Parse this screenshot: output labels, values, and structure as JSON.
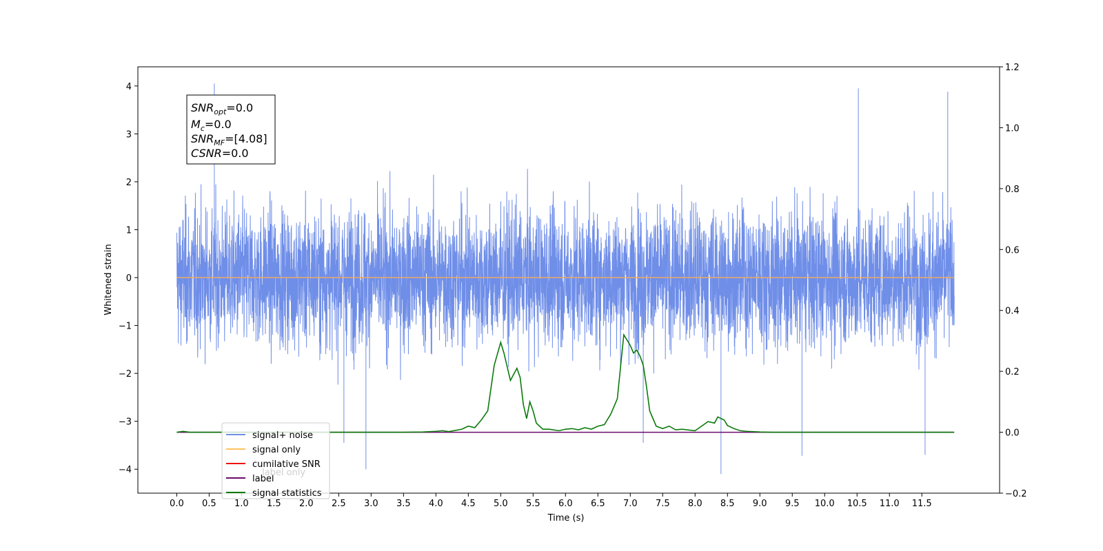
{
  "chart_data": {
    "type": "line",
    "xlabel": "Time (s)",
    "ylabel": "Whitened strain",
    "xlim": [
      -0.6,
      12.7
    ],
    "ylim_left": [
      -4.5,
      4.4
    ],
    "ylim_right": [
      -0.2,
      1.2
    ],
    "x_tick_labels": [
      "0.0",
      "0.5",
      "1.0",
      "1.5",
      "2.0",
      "2.5",
      "3.0",
      "3.5",
      "4.0",
      "4.5",
      "5.0",
      "5.5",
      "6.0",
      "6.5",
      "7.0",
      "7.5",
      "8.0",
      "8.5",
      "9.0",
      "9.5",
      "10.0",
      "10.5",
      "11.0",
      "11.5"
    ],
    "y_left_tick_labels": [
      "4",
      "3",
      "2",
      "1",
      "0",
      "−1",
      "−2",
      "−3",
      "−4"
    ],
    "y_right_tick_labels": [
      "1.2",
      "1.0",
      "0.8",
      "0.6",
      "0.4",
      "0.2",
      "0.0",
      "−0.2"
    ],
    "info_box": {
      "snr_opt_label": "SNR",
      "snr_opt_sub": "opt",
      "snr_opt_value": "=0.0",
      "mc_label": "M",
      "mc_sub": "c",
      "mc_value": "=0.0",
      "snr_mf_label": "SNR",
      "snr_mf_sub": "MF",
      "snr_mf_value": "=[4.08]",
      "csnr_label": "CSNR",
      "csnr_value": "=0.0"
    },
    "legend": {
      "placement": "lower-left",
      "entries": [
        {
          "label": "signal+ noise",
          "color": "#6f8ee8"
        },
        {
          "label": "signal only",
          "color": "#ffc25e"
        },
        {
          "label": "cumilative SNR",
          "color": "#ee1111"
        },
        {
          "label": "label",
          "color": "#6a0a6a"
        },
        {
          "label": "signal statistics",
          "color": "#0a7a0a"
        }
      ],
      "hidden_label": "label only"
    },
    "series": [
      {
        "name": "signal+ noise",
        "axis": "left",
        "color": "#6f8ee8",
        "description_shape": "dense noise, typical amplitude ~2.0, spikes reaching about +4.05 and -4.1",
        "x_range": [
          0.0,
          12.0
        ],
        "peaks": [
          {
            "x": 0.58,
            "y": 4.05
          },
          {
            "x": 10.52,
            "y": 3.95
          },
          {
            "x": 11.9,
            "y": 3.88
          },
          {
            "x": 8.4,
            "y": -4.1
          },
          {
            "x": 2.92,
            "y": -4.0
          },
          {
            "x": 11.55,
            "y": -3.7
          },
          {
            "x": 9.65,
            "y": -3.72
          },
          {
            "x": 2.58,
            "y": -3.45
          },
          {
            "x": 7.2,
            "y": -3.45
          }
        ]
      },
      {
        "name": "signal only",
        "axis": "left",
        "color": "#f0a860",
        "x": [
          0.0,
          12.0
        ],
        "y": [
          0.0,
          0.0
        ]
      },
      {
        "name": "label",
        "axis": "right",
        "color": "#6a0a6a",
        "x": [
          0.0,
          12.0
        ],
        "y": [
          0.0,
          0.0
        ]
      },
      {
        "name": "signal statistics",
        "axis": "right",
        "color": "#0a7a0a",
        "x": [
          0.0,
          0.1,
          0.2,
          3.5,
          3.8,
          4.0,
          4.1,
          4.2,
          4.3,
          4.4,
          4.5,
          4.6,
          4.7,
          4.8,
          4.9,
          5.0,
          5.05,
          5.15,
          5.25,
          5.3,
          5.35,
          5.4,
          5.45,
          5.5,
          5.55,
          5.6,
          5.65,
          5.75,
          5.9,
          6.0,
          6.1,
          6.2,
          6.3,
          6.4,
          6.5,
          6.6,
          6.7,
          6.8,
          6.9,
          7.0,
          7.05,
          7.1,
          7.15,
          7.2,
          7.25,
          7.3,
          7.4,
          7.5,
          7.6,
          7.7,
          7.8,
          8.0,
          8.1,
          8.2,
          8.3,
          8.35,
          8.45,
          8.5,
          8.6,
          8.7,
          8.8,
          9.0,
          9.2,
          9.5,
          11.0,
          11.99
        ],
        "y": [
          0.0,
          0.003,
          0.0,
          0.0,
          0.001,
          0.003,
          0.005,
          0.002,
          0.006,
          0.01,
          0.02,
          0.015,
          0.04,
          0.07,
          0.22,
          0.295,
          0.26,
          0.17,
          0.21,
          0.18,
          0.09,
          0.045,
          0.1,
          0.07,
          0.03,
          0.02,
          0.01,
          0.01,
          0.005,
          0.01,
          0.012,
          0.008,
          0.015,
          0.01,
          0.02,
          0.025,
          0.06,
          0.11,
          0.32,
          0.285,
          0.26,
          0.27,
          0.25,
          0.22,
          0.15,
          0.07,
          0.02,
          0.012,
          0.02,
          0.008,
          0.01,
          0.005,
          0.02,
          0.035,
          0.03,
          0.05,
          0.04,
          0.022,
          0.012,
          0.005,
          0.003,
          0.001,
          0.0,
          0.0,
          0.0,
          0.0
        ]
      }
    ]
  }
}
